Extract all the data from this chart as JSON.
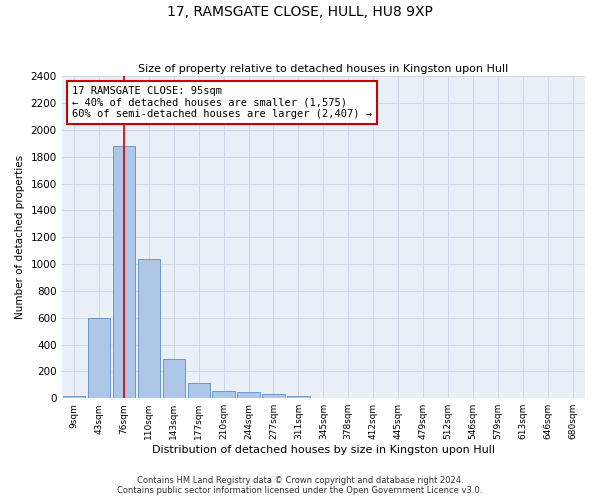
{
  "title": "17, RAMSGATE CLOSE, HULL, HU8 9XP",
  "subtitle": "Size of property relative to detached houses in Kingston upon Hull",
  "xlabel": "Distribution of detached houses by size in Kingston upon Hull",
  "ylabel": "Number of detached properties",
  "footer_line1": "Contains HM Land Registry data © Crown copyright and database right 2024.",
  "footer_line2": "Contains public sector information licensed under the Open Government Licence v3.0.",
  "bin_labels": [
    "9sqm",
    "43sqm",
    "76sqm",
    "110sqm",
    "143sqm",
    "177sqm",
    "210sqm",
    "244sqm",
    "277sqm",
    "311sqm",
    "345sqm",
    "378sqm",
    "412sqm",
    "445sqm",
    "479sqm",
    "512sqm",
    "546sqm",
    "579sqm",
    "613sqm",
    "646sqm",
    "680sqm"
  ],
  "bar_values": [
    20,
    600,
    1880,
    1035,
    290,
    115,
    50,
    45,
    30,
    20,
    0,
    0,
    0,
    0,
    0,
    0,
    0,
    0,
    0,
    0,
    0
  ],
  "bar_color": "#aec6e8",
  "bar_edge_color": "#5a8fc0",
  "grid_color": "#d0d8e8",
  "background_color": "#eaf0f8",
  "annotation_line1": "17 RAMSGATE CLOSE: 95sqm",
  "annotation_line2": "← 40% of detached houses are smaller (1,575)",
  "annotation_line3": "60% of semi-detached houses are larger (2,407) →",
  "annotation_box_color": "#cc0000",
  "vline_x_index": 2,
  "vline_color": "#cc0000",
  "ylim": [
    0,
    2400
  ],
  "yticks": [
    0,
    200,
    400,
    600,
    800,
    1000,
    1200,
    1400,
    1600,
    1800,
    2000,
    2200,
    2400
  ]
}
